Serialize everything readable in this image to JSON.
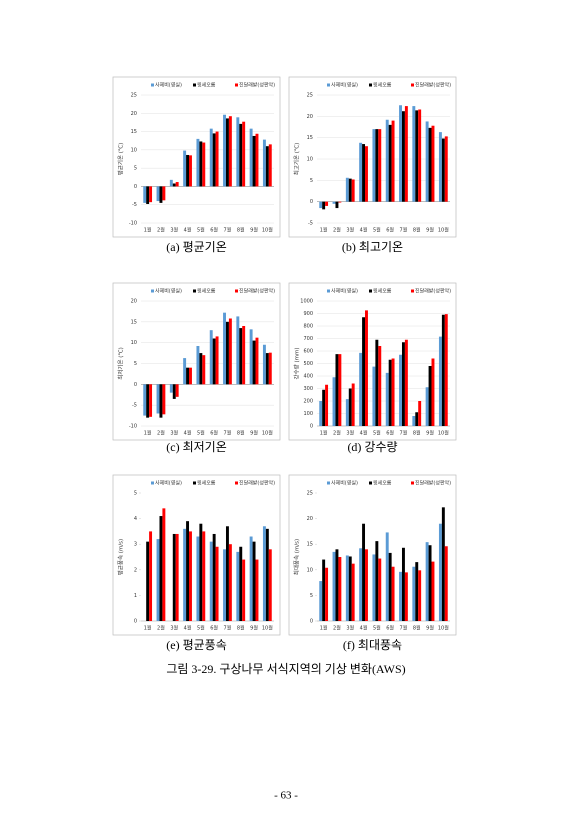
{
  "chart_data": [
    {
      "type": "bar",
      "caption": "(a) 평균기온",
      "y_label": "평균기온 (℃)",
      "categories": [
        "1월",
        "2월",
        "3월",
        "4월",
        "5월",
        "6월",
        "7월",
        "8월",
        "9월",
        "10월"
      ],
      "series": [
        {
          "name": "사제비(영실)",
          "color": "#5b9bd5",
          "values": [
            -4.5,
            -4.0,
            1.8,
            9.8,
            13.0,
            15.8,
            19.6,
            18.9,
            15.8,
            12.8
          ]
        },
        {
          "name": "윗세오름",
          "color": "#000000",
          "values": [
            -4.8,
            -4.5,
            0.8,
            8.6,
            12.3,
            14.5,
            18.6,
            17.1,
            13.8,
            11.0
          ]
        },
        {
          "name": "진달래밭(성판악)",
          "color": "#ff0000",
          "values": [
            -4.3,
            -3.8,
            1.2,
            8.5,
            12.0,
            15.0,
            19.2,
            17.7,
            14.4,
            11.5
          ]
        }
      ],
      "ylim": [
        -10,
        25
      ],
      "yticks": [
        -10,
        -5,
        0,
        5,
        10,
        15,
        20,
        25
      ],
      "grid": true
    },
    {
      "type": "bar",
      "caption": "(b) 최고기온",
      "y_label": "최고기온 (℃)",
      "categories": [
        "1월",
        "2월",
        "3월",
        "4월",
        "5월",
        "6월",
        "7월",
        "8월",
        "9월",
        "10월"
      ],
      "series": [
        {
          "name": "사제비(영실)",
          "color": "#5b9bd5",
          "values": [
            -1.5,
            -0.5,
            5.6,
            13.8,
            17.0,
            19.2,
            22.6,
            22.4,
            18.8,
            16.3
          ]
        },
        {
          "name": "윗세오름",
          "color": "#000000",
          "values": [
            -1.8,
            -1.5,
            5.4,
            13.5,
            17.0,
            18.0,
            21.2,
            21.4,
            17.3,
            14.8
          ]
        },
        {
          "name": "진달래밭(성판악)",
          "color": "#ff0000",
          "values": [
            -1.0,
            -0.2,
            5.2,
            13.0,
            17.0,
            19.0,
            22.4,
            21.6,
            17.8,
            15.3
          ]
        }
      ],
      "ylim": [
        -5,
        25
      ],
      "yticks": [
        -5,
        0,
        5,
        10,
        15,
        20,
        25
      ],
      "grid": true
    },
    {
      "type": "bar",
      "caption": "(c) 최저기온",
      "y_label": "최저기온 (℃)",
      "categories": [
        "1월",
        "2월",
        "3월",
        "4월",
        "5월",
        "6월",
        "7월",
        "8월",
        "9월",
        "10월"
      ],
      "series": [
        {
          "name": "사제비(영실)",
          "color": "#5b9bd5",
          "values": [
            -7.5,
            -7.0,
            -2.0,
            6.3,
            9.2,
            13.0,
            17.2,
            16.3,
            13.2,
            9.5
          ]
        },
        {
          "name": "윗세오름",
          "color": "#000000",
          "values": [
            -8.0,
            -8.0,
            -3.5,
            4.0,
            7.5,
            11.0,
            15.0,
            13.5,
            10.5,
            7.5
          ]
        },
        {
          "name": "진달래밭(성판악)",
          "color": "#ff0000",
          "values": [
            -7.8,
            -7.2,
            -3.0,
            4.0,
            7.0,
            11.5,
            15.8,
            14.0,
            11.2,
            7.6
          ]
        }
      ],
      "ylim": [
        -10,
        20
      ],
      "yticks": [
        -10,
        -5,
        0,
        5,
        10,
        15,
        20
      ],
      "grid": true
    },
    {
      "type": "bar",
      "caption": "(d) 강수량",
      "y_label": "강수량 (mm)",
      "categories": [
        "1월",
        "2월",
        "3월",
        "4월",
        "5월",
        "6월",
        "7월",
        "8월",
        "9월",
        "10월"
      ],
      "series": [
        {
          "name": "사제비(영실)",
          "color": "#5b9bd5",
          "values": [
            200,
            390,
            215,
            585,
            475,
            425,
            570,
            80,
            310,
            715
          ]
        },
        {
          "name": "윗세오름",
          "color": "#000000",
          "values": [
            290,
            575,
            300,
            870,
            690,
            530,
            670,
            110,
            480,
            890
          ]
        },
        {
          "name": "진달래밭(성판악)",
          "color": "#ff0000",
          "values": [
            330,
            575,
            340,
            925,
            640,
            540,
            690,
            200,
            540,
            895
          ]
        }
      ],
      "ylim": [
        0,
        1000
      ],
      "yticks": [
        0,
        100,
        200,
        300,
        400,
        500,
        600,
        700,
        800,
        900,
        1000
      ],
      "grid": true
    },
    {
      "type": "bar",
      "caption": "(e) 평균풍속",
      "y_label": "평균풍속 (m/s)",
      "categories": [
        "1월",
        "2월",
        "3월",
        "4월",
        "5월",
        "6월",
        "7월",
        "8월",
        "9월",
        "10월"
      ],
      "series": [
        {
          "name": "사제비(영실)",
          "color": "#5b9bd5",
          "values": [
            null,
            3.2,
            null,
            3.6,
            3.3,
            3.1,
            2.8,
            2.7,
            3.3,
            3.7
          ]
        },
        {
          "name": "윗세오름",
          "color": "#000000",
          "values": [
            3.1,
            4.1,
            3.4,
            3.9,
            3.8,
            3.4,
            3.7,
            2.9,
            3.1,
            3.6
          ]
        },
        {
          "name": "진달래밭(성판악)",
          "color": "#ff0000",
          "values": [
            3.5,
            4.4,
            3.4,
            3.5,
            3.5,
            2.9,
            3.0,
            2.4,
            2.4,
            2.8
          ]
        }
      ],
      "ylim": [
        0,
        5
      ],
      "yticks": [
        0,
        1,
        2,
        3,
        4,
        5
      ],
      "grid": false
    },
    {
      "type": "bar",
      "caption": "(f) 최대풍속",
      "y_label": "최대풍속 (m/s)",
      "categories": [
        "1월",
        "2월",
        "3월",
        "4월",
        "5월",
        "6월",
        "7월",
        "8월",
        "9월",
        "10월"
      ],
      "series": [
        {
          "name": "사제비(영실)",
          "color": "#5b9bd5",
          "values": [
            7.8,
            13.5,
            12.8,
            14.2,
            13.0,
            17.3,
            9.6,
            10.6,
            15.4,
            19.0
          ]
        },
        {
          "name": "윗세오름",
          "color": "#000000",
          "values": [
            12.0,
            14.0,
            12.6,
            19.0,
            15.6,
            13.3,
            14.3,
            11.5,
            14.8,
            22.2
          ]
        },
        {
          "name": "진달래밭(성판악)",
          "color": "#ff0000",
          "values": [
            10.4,
            12.5,
            11.2,
            14.0,
            12.2,
            10.6,
            9.5,
            9.9,
            11.6,
            14.6
          ]
        }
      ],
      "ylim": [
        0,
        25
      ],
      "yticks": [
        0,
        5,
        10,
        15,
        20,
        25
      ],
      "grid": false
    }
  ],
  "figure_caption": "그림 3-29. 구상나무 서식지역의 기상 변화(AWS)",
  "page_number": "- 63 -"
}
